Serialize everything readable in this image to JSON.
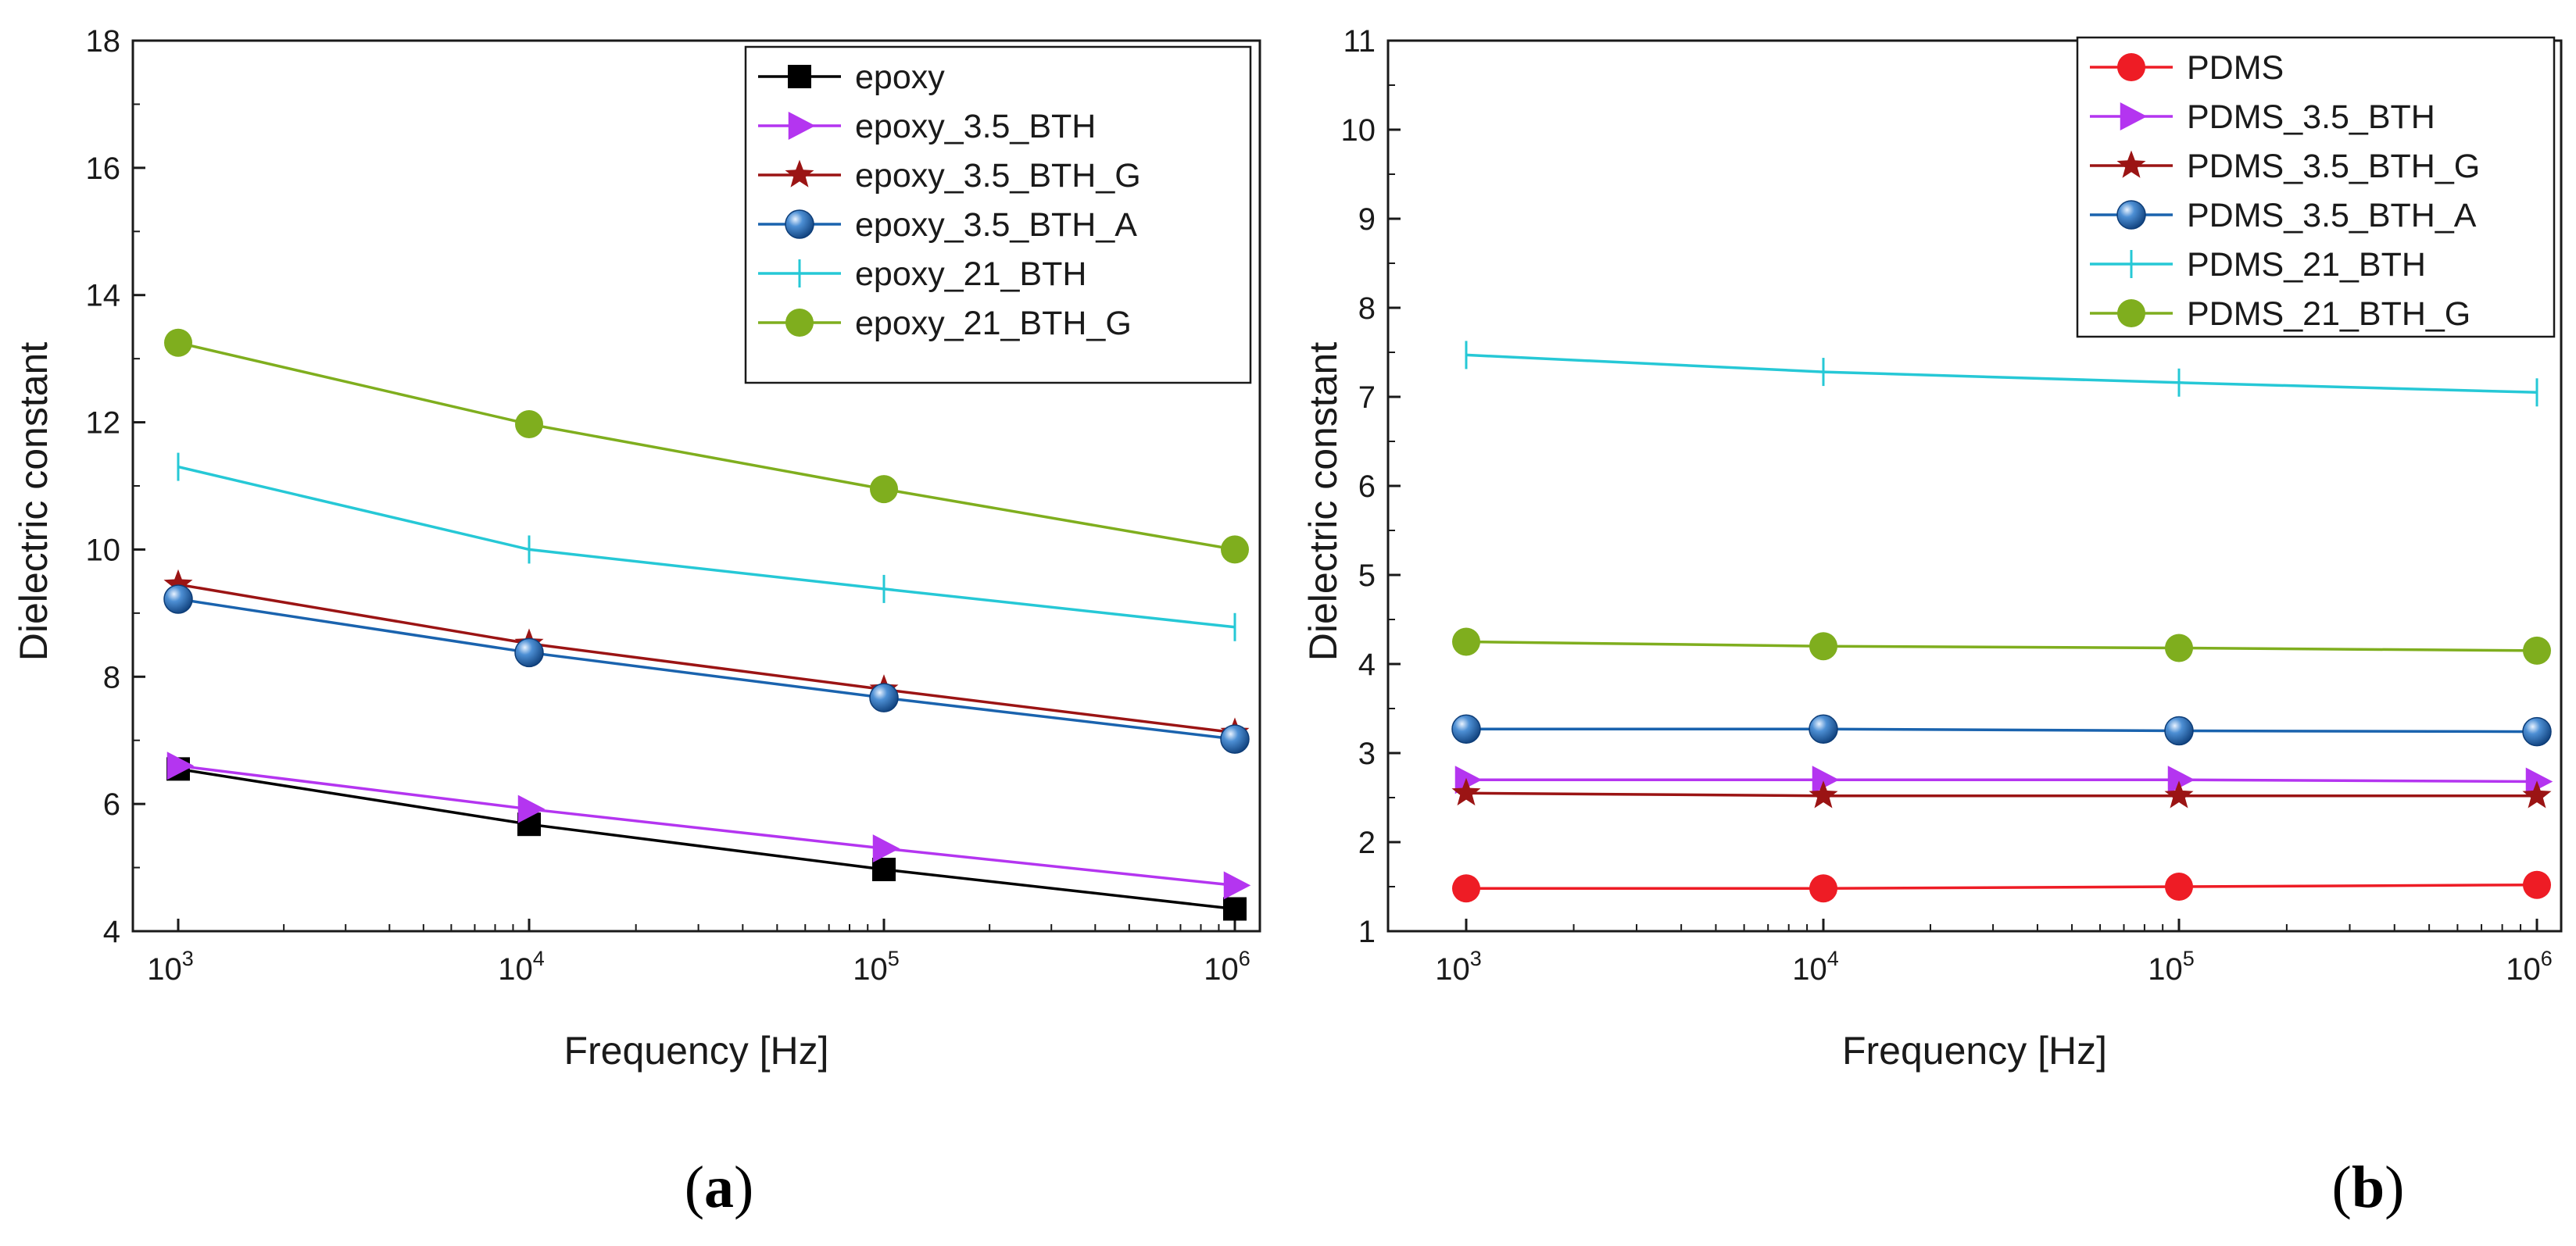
{
  "chart_data": [
    {
      "type": "line",
      "panel_label": "a",
      "xlabel": "Frequency [Hz]",
      "ylabel": "Dielectric constant",
      "xscale": "log",
      "x": [
        1000,
        10000,
        100000,
        1000000
      ],
      "xtick_base": "10",
      "xtick_exponents": [
        "3",
        "4",
        "5",
        "6"
      ],
      "xlim": [
        800,
        1250000
      ],
      "ylim": [
        4,
        18
      ],
      "yticks": [
        4,
        6,
        8,
        10,
        12,
        14,
        16,
        18
      ],
      "ytick_labels": [
        "4",
        "6",
        "8",
        "10",
        "12",
        "14",
        "16",
        "18"
      ],
      "grid": false,
      "legend_position": "top-right",
      "series": [
        {
          "name": "epoxy",
          "color": "#000000",
          "marker": "square",
          "values": [
            6.55,
            5.68,
            4.97,
            4.35
          ]
        },
        {
          "name": "epoxy_3.5_BTH",
          "color": "#b435f0",
          "marker": "triangle-right",
          "values": [
            6.6,
            5.92,
            5.3,
            4.72
          ]
        },
        {
          "name": "epoxy_3.5_BTH_G",
          "color": "#9b1414",
          "marker": "star",
          "values": [
            9.45,
            8.52,
            7.8,
            7.12
          ]
        },
        {
          "name": "epoxy_3.5_BTH_A",
          "color": "#1a63ae",
          "marker": "sphere",
          "values": [
            9.22,
            8.38,
            7.67,
            7.02
          ]
        },
        {
          "name": "epoxy_21_BTH",
          "color": "#26c8d6",
          "marker": "bar",
          "values": [
            11.3,
            10.0,
            9.38,
            8.78
          ]
        },
        {
          "name": "epoxy_21_BTH_G",
          "color": "#7fae1e",
          "marker": "circle",
          "values": [
            13.25,
            11.97,
            10.95,
            10.0
          ]
        }
      ]
    },
    {
      "type": "line",
      "panel_label": "b",
      "xlabel": "Frequency [Hz]",
      "ylabel": "Dielectric constant",
      "xscale": "log",
      "x": [
        1000,
        10000,
        100000,
        1000000
      ],
      "xtick_base": "10",
      "xtick_exponents": [
        "3",
        "4",
        "5",
        "6"
      ],
      "xlim": [
        800,
        1250000
      ],
      "ylim": [
        1,
        11
      ],
      "yticks": [
        1,
        2,
        3,
        4,
        5,
        6,
        7,
        8,
        9,
        10,
        11
      ],
      "ytick_labels": [
        "1",
        "2",
        "3",
        "4",
        "5",
        "6",
        "7",
        "8",
        "9",
        "10",
        "11"
      ],
      "grid": false,
      "legend_position": "top-right",
      "series": [
        {
          "name": "PDMS",
          "color": "#ee1c25",
          "marker": "circle",
          "values": [
            1.48,
            1.48,
            1.5,
            1.52
          ]
        },
        {
          "name": "PDMS_3.5_BTH",
          "color": "#b435f0",
          "marker": "triangle-right",
          "values": [
            2.7,
            2.7,
            2.7,
            2.68
          ]
        },
        {
          "name": "PDMS_3.5_BTH_G",
          "color": "#9b1414",
          "marker": "star",
          "values": [
            2.55,
            2.52,
            2.52,
            2.52
          ]
        },
        {
          "name": "PDMS_3.5_BTH_A",
          "color": "#1a63ae",
          "marker": "sphere",
          "values": [
            3.27,
            3.27,
            3.25,
            3.24
          ]
        },
        {
          "name": "PDMS_21_BTH",
          "color": "#26c8d6",
          "marker": "bar",
          "values": [
            7.47,
            7.28,
            7.16,
            7.05
          ]
        },
        {
          "name": "PDMS_21_BTH_G",
          "color": "#7fae1e",
          "marker": "circle",
          "values": [
            4.25,
            4.2,
            4.18,
            4.15
          ]
        }
      ]
    }
  ]
}
